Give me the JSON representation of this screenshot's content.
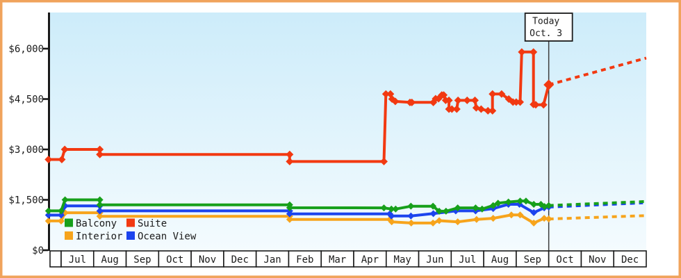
{
  "chart_data": {
    "type": "line",
    "description_note": "Cruise cabin price history chart; x unit = months after the first July tick; dashed segments are future price projections",
    "y_axis": {
      "ticks": [
        {
          "value": 0,
          "label": "$0"
        },
        {
          "value": 1500,
          "label": "$1,500"
        },
        {
          "value": 3000,
          "label": "$3,000"
        },
        {
          "value": 4500,
          "label": "$4,500"
        },
        {
          "value": 6000,
          "label": "$6,000"
        }
      ],
      "range": [
        0,
        7100
      ],
      "grid": false
    },
    "x_axis": {
      "months": [
        "Jul",
        "Aug",
        "Sep",
        "Oct",
        "Nov",
        "Dec",
        "Jan",
        "Feb",
        "Mar",
        "Apr",
        "May",
        "Jun",
        "Jul",
        "Aug",
        "Sep",
        "Oct",
        "Nov",
        "Dec"
      ]
    },
    "today": {
      "label_lines": [
        "Today",
        "Oct. 3"
      ],
      "x_month": 15.0
    },
    "legend": [
      {
        "label": "Balcony",
        "series": "Balcony",
        "col": 0,
        "row": 0
      },
      {
        "label": "Suite",
        "series": "Suite",
        "col": 1,
        "row": 0
      },
      {
        "label": "Interior",
        "series": "Interior",
        "col": 0,
        "row": 1
      },
      {
        "label": "Ocean View",
        "series": "Ocean View",
        "col": 1,
        "row": 1
      }
    ],
    "series": [
      {
        "name": "Interior",
        "color": "#f7a41c",
        "marker_r": 5,
        "points": [
          [
            -0.39,
            870
          ],
          [
            0.0,
            870
          ],
          [
            0.12,
            1115
          ],
          [
            1.19,
            1115
          ],
          [
            1.19,
            1010
          ],
          [
            7.03,
            1010
          ],
          [
            7.03,
            915
          ],
          [
            10.11,
            915
          ],
          [
            10.17,
            845
          ],
          [
            10.77,
            810
          ],
          [
            11.44,
            810
          ],
          [
            11.63,
            880
          ],
          [
            12.2,
            845
          ],
          [
            12.78,
            915
          ],
          [
            13.29,
            950
          ],
          [
            13.85,
            1050
          ],
          [
            14.12,
            1050
          ],
          [
            14.54,
            810
          ],
          [
            14.86,
            950
          ],
          [
            15.0,
            930
          ]
        ],
        "projection": [
          [
            15.0,
            930
          ],
          [
            18.0,
            1030
          ]
        ]
      },
      {
        "name": "Ocean View",
        "color": "#1c44ee",
        "marker_r": 5,
        "points": [
          [
            -0.39,
            1045
          ],
          [
            0.0,
            1045
          ],
          [
            0.12,
            1320
          ],
          [
            1.19,
            1320
          ],
          [
            1.19,
            1170
          ],
          [
            7.03,
            1170
          ],
          [
            7.03,
            1080
          ],
          [
            10.11,
            1080
          ],
          [
            10.16,
            1020
          ],
          [
            10.76,
            1020
          ],
          [
            11.45,
            1090
          ],
          [
            12.14,
            1170
          ],
          [
            12.75,
            1170
          ],
          [
            13.29,
            1240
          ],
          [
            13.76,
            1365
          ],
          [
            14.1,
            1365
          ],
          [
            14.54,
            1120
          ],
          [
            14.86,
            1260
          ],
          [
            15.0,
            1285
          ]
        ],
        "projection": [
          [
            15.0,
            1285
          ],
          [
            17.9,
            1410
          ]
        ]
      },
      {
        "name": "Balcony",
        "color": "#17a01b",
        "marker_r": 5,
        "points": [
          [
            -0.39,
            1170
          ],
          [
            0.0,
            1170
          ],
          [
            0.12,
            1500
          ],
          [
            1.19,
            1500
          ],
          [
            1.19,
            1350
          ],
          [
            7.03,
            1350
          ],
          [
            7.03,
            1265
          ],
          [
            9.93,
            1260
          ],
          [
            10.16,
            1225
          ],
          [
            10.29,
            1225
          ],
          [
            10.76,
            1310
          ],
          [
            11.44,
            1310
          ],
          [
            11.63,
            1160
          ],
          [
            11.84,
            1160
          ],
          [
            12.2,
            1260
          ],
          [
            12.75,
            1260
          ],
          [
            12.95,
            1225
          ],
          [
            13.29,
            1330
          ],
          [
            13.44,
            1400
          ],
          [
            13.76,
            1435
          ],
          [
            14.12,
            1465
          ],
          [
            14.3,
            1465
          ],
          [
            14.54,
            1365
          ],
          [
            14.76,
            1365
          ],
          [
            14.87,
            1300
          ],
          [
            15.0,
            1330
          ]
        ],
        "projection": [
          [
            15.0,
            1330
          ],
          [
            18.0,
            1450
          ]
        ]
      },
      {
        "name": "Suite",
        "color": "#f23911",
        "marker_r": 5.5,
        "points": [
          [
            -0.39,
            2700
          ],
          [
            0.02,
            2700
          ],
          [
            0.11,
            3000
          ],
          [
            1.19,
            3000
          ],
          [
            1.19,
            2850
          ],
          [
            7.03,
            2850
          ],
          [
            7.03,
            2640
          ],
          [
            9.93,
            2640
          ],
          [
            9.99,
            4650
          ],
          [
            10.13,
            4650
          ],
          [
            10.18,
            4500
          ],
          [
            10.28,
            4430
          ],
          [
            10.73,
            4400
          ],
          [
            10.79,
            4400
          ],
          [
            11.45,
            4400
          ],
          [
            11.52,
            4510
          ],
          [
            11.61,
            4510
          ],
          [
            11.71,
            4620
          ],
          [
            11.77,
            4620
          ],
          [
            11.83,
            4460
          ],
          [
            11.93,
            4460
          ],
          [
            11.93,
            4200
          ],
          [
            12.02,
            4200
          ],
          [
            12.17,
            4200
          ],
          [
            12.21,
            4460
          ],
          [
            12.49,
            4460
          ],
          [
            12.73,
            4460
          ],
          [
            12.77,
            4240
          ],
          [
            12.92,
            4200
          ],
          [
            13.13,
            4150
          ],
          [
            13.27,
            4150
          ],
          [
            13.27,
            4650
          ],
          [
            13.55,
            4650
          ],
          [
            13.77,
            4500
          ],
          [
            13.9,
            4410
          ],
          [
            14.0,
            4410
          ],
          [
            14.12,
            4410
          ],
          [
            14.17,
            5900
          ],
          [
            14.53,
            5900
          ],
          [
            14.53,
            4340
          ],
          [
            14.6,
            4330
          ],
          [
            14.84,
            4330
          ],
          [
            15.0,
            4925,
            7.5
          ]
        ],
        "projection": [
          [
            15.0,
            4925
          ],
          [
            18.0,
            5720
          ]
        ]
      }
    ],
    "colors": {
      "background_top": "#cdecfa",
      "background_bottom": "#f4fbfe",
      "axis": "#1a1a1a",
      "frame_border": "#f0a35c",
      "today_line": "#3c3c3c",
      "month_cell_fill": "#ffffff",
      "today_box_fill": "#ffffff"
    }
  }
}
